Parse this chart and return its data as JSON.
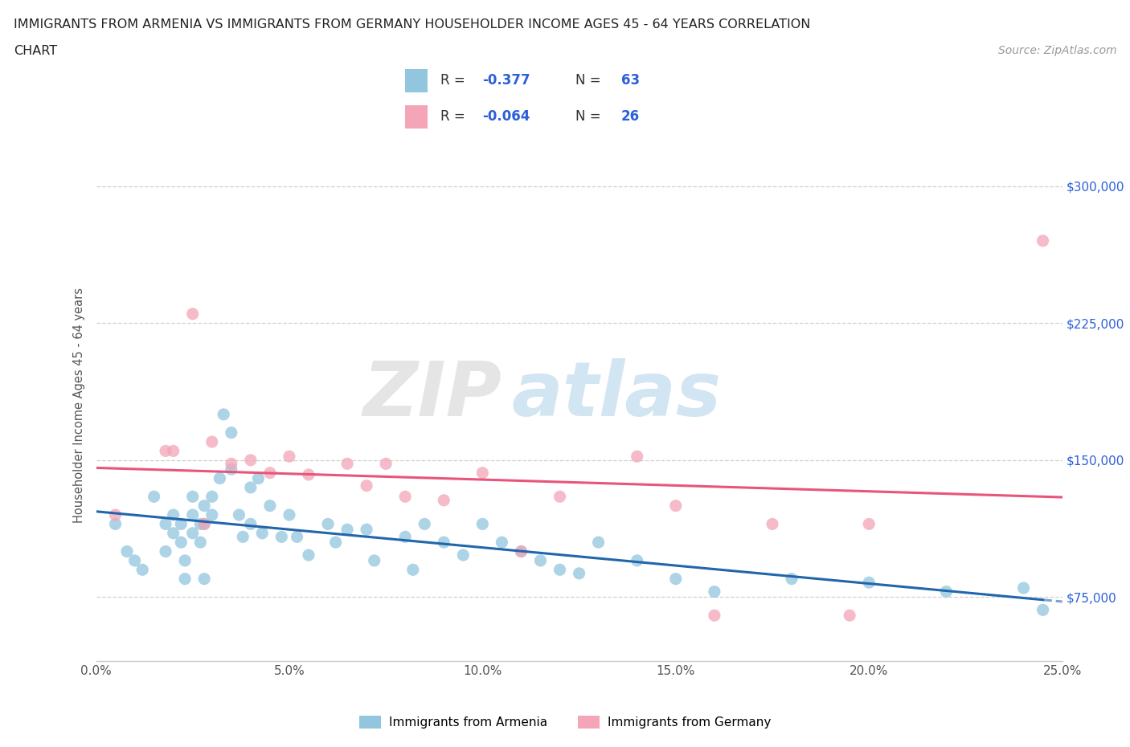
{
  "title_line1": "IMMIGRANTS FROM ARMENIA VS IMMIGRANTS FROM GERMANY HOUSEHOLDER INCOME AGES 45 - 64 YEARS CORRELATION",
  "title_line2": "CHART",
  "source_text": "Source: ZipAtlas.com",
  "ylabel": "Householder Income Ages 45 - 64 years",
  "xlim": [
    0.0,
    0.25
  ],
  "ylim": [
    40000,
    320000
  ],
  "xtick_values": [
    0.0,
    0.05,
    0.1,
    0.15,
    0.2,
    0.25
  ],
  "ytick_values": [
    75000,
    150000,
    225000,
    300000
  ],
  "watermark_zip": "ZIP",
  "watermark_atlas": "atlas",
  "legend_R_armenia": "-0.377",
  "legend_N_armenia": "63",
  "legend_R_germany": "-0.064",
  "legend_N_germany": "26",
  "armenia_color": "#92C5DE",
  "germany_color": "#F4A5B8",
  "armenia_line_color": "#2166AC",
  "germany_line_color": "#E8547A",
  "background_color": "#ffffff",
  "grid_color": "#BBBBBB",
  "title_color": "#222222",
  "label_color": "#555555",
  "r_value_color": "#2B5FD9",
  "right_tick_color": "#2B5FD9",
  "armenia_label": "Immigrants from Armenia",
  "germany_label": "Immigrants from Germany",
  "armenia_scatter_x": [
    0.005,
    0.008,
    0.01,
    0.012,
    0.015,
    0.018,
    0.018,
    0.02,
    0.02,
    0.022,
    0.022,
    0.023,
    0.023,
    0.025,
    0.025,
    0.025,
    0.027,
    0.027,
    0.028,
    0.028,
    0.028,
    0.03,
    0.03,
    0.032,
    0.033,
    0.035,
    0.035,
    0.037,
    0.038,
    0.04,
    0.04,
    0.042,
    0.043,
    0.045,
    0.048,
    0.05,
    0.052,
    0.055,
    0.06,
    0.062,
    0.065,
    0.07,
    0.072,
    0.08,
    0.082,
    0.085,
    0.09,
    0.095,
    0.1,
    0.105,
    0.11,
    0.115,
    0.12,
    0.125,
    0.13,
    0.14,
    0.15,
    0.16,
    0.18,
    0.2,
    0.22,
    0.24,
    0.245
  ],
  "armenia_scatter_y": [
    115000,
    100000,
    95000,
    90000,
    130000,
    115000,
    100000,
    120000,
    110000,
    115000,
    105000,
    95000,
    85000,
    130000,
    120000,
    110000,
    115000,
    105000,
    125000,
    115000,
    85000,
    130000,
    120000,
    140000,
    175000,
    165000,
    145000,
    120000,
    108000,
    135000,
    115000,
    140000,
    110000,
    125000,
    108000,
    120000,
    108000,
    98000,
    115000,
    105000,
    112000,
    112000,
    95000,
    108000,
    90000,
    115000,
    105000,
    98000,
    115000,
    105000,
    100000,
    95000,
    90000,
    88000,
    105000,
    95000,
    85000,
    78000,
    85000,
    83000,
    78000,
    80000,
    68000
  ],
  "germany_scatter_x": [
    0.005,
    0.018,
    0.02,
    0.025,
    0.028,
    0.03,
    0.035,
    0.04,
    0.045,
    0.05,
    0.055,
    0.065,
    0.07,
    0.075,
    0.08,
    0.09,
    0.1,
    0.11,
    0.12,
    0.14,
    0.15,
    0.16,
    0.175,
    0.195,
    0.2,
    0.245
  ],
  "germany_scatter_y": [
    120000,
    155000,
    155000,
    230000,
    115000,
    160000,
    148000,
    150000,
    143000,
    152000,
    142000,
    148000,
    136000,
    148000,
    130000,
    128000,
    143000,
    100000,
    130000,
    152000,
    125000,
    65000,
    115000,
    65000,
    115000,
    270000
  ]
}
